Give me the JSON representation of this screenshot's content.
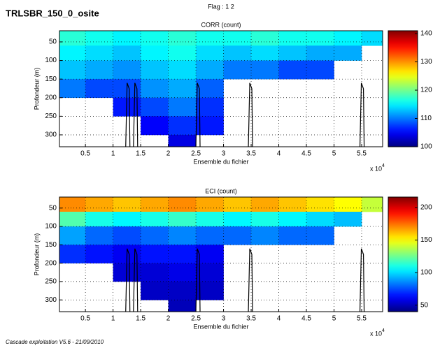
{
  "header": {
    "title": "TRLSBR_150_0_osite",
    "subtitle": "Flag : 1 2"
  },
  "footer": "Cascade exploitation V5.6 - 21/09/2010",
  "chart_data": [
    {
      "type": "heatmap",
      "title": "CORR (count)",
      "xlabel": "Ensemble du fichier",
      "ylabel": "Profondeur (m)",
      "xscale_label": "x 10",
      "xscale_exponent": "4",
      "x": [
        0.03,
        0.5,
        1,
        1.5,
        2,
        2.5,
        3,
        3.5,
        4,
        4.5,
        5,
        5.5,
        5.88
      ],
      "y": [
        20,
        60,
        100,
        150,
        200,
        250,
        300,
        332
      ],
      "values": [
        [
          117,
          116,
          115,
          116,
          117,
          116,
          116,
          117,
          116,
          116,
          115,
          114
        ],
        [
          115,
          114,
          113,
          115,
          116,
          114,
          113,
          114,
          113,
          112,
          112,
          null
        ],
        [
          113,
          112,
          111,
          113,
          114,
          112,
          110,
          110,
          108,
          108,
          null,
          null
        ],
        [
          110,
          108,
          108,
          111,
          112,
          109,
          null,
          null,
          null,
          null,
          null,
          null
        ],
        [
          null,
          null,
          106,
          108,
          110,
          107,
          null,
          null,
          null,
          null,
          null,
          null
        ],
        [
          null,
          null,
          null,
          105,
          107,
          106,
          null,
          null,
          null,
          null,
          null,
          null
        ],
        [
          null,
          null,
          null,
          null,
          104,
          null,
          null,
          null,
          null,
          null,
          null,
          null
        ]
      ],
      "xlim": [
        0.03,
        5.88
      ],
      "ylim": [
        20,
        332
      ],
      "y_reversed": true,
      "xticks": [
        0.5,
        1,
        1.5,
        2,
        2.5,
        3,
        3.5,
        4,
        4.5,
        5,
        5.5
      ],
      "yticks": [
        50,
        100,
        150,
        200,
        250,
        300
      ],
      "clim": [
        100,
        141
      ],
      "cticks": [
        100,
        110,
        120,
        130,
        140
      ],
      "colormap": "jet",
      "grid": true
    },
    {
      "type": "heatmap",
      "title": "ECI (count)",
      "xlabel": "Ensemble du fichier",
      "ylabel": "Profondeur (m)",
      "xscale_label": "x 10",
      "xscale_exponent": "4",
      "x": [
        0.03,
        0.5,
        1,
        1.5,
        2,
        2.5,
        3,
        3.5,
        4,
        4.5,
        5,
        5.5,
        5.88
      ],
      "y": [
        20,
        60,
        100,
        150,
        200,
        250,
        300,
        332
      ],
      "values": [
        [
          170,
          165,
          160,
          165,
          170,
          165,
          160,
          165,
          160,
          155,
          150,
          140
        ],
        [
          120,
          110,
          105,
          110,
          115,
          110,
          105,
          110,
          105,
          100,
          95,
          null
        ],
        [
          90,
          80,
          75,
          80,
          85,
          80,
          80,
          85,
          80,
          80,
          null,
          null
        ],
        [
          70,
          65,
          60,
          65,
          65,
          60,
          null,
          null,
          null,
          null,
          null,
          null
        ],
        [
          null,
          null,
          55,
          55,
          58,
          55,
          null,
          null,
          null,
          null,
          null,
          null
        ],
        [
          null,
          null,
          null,
          52,
          52,
          52,
          null,
          null,
          null,
          null,
          null,
          null
        ],
        [
          null,
          null,
          null,
          null,
          50,
          null,
          null,
          null,
          null,
          null,
          null,
          null
        ]
      ],
      "xlim": [
        0.03,
        5.88
      ],
      "ylim": [
        20,
        332
      ],
      "y_reversed": true,
      "xticks": [
        0.5,
        1,
        1.5,
        2,
        2.5,
        3,
        3.5,
        4,
        4.5,
        5,
        5.5
      ],
      "yticks": [
        50,
        100,
        150,
        200,
        250,
        300
      ],
      "clim": [
        40,
        216
      ],
      "cticks": [
        50,
        100,
        150,
        200
      ],
      "colormap": "jet",
      "grid": true
    }
  ]
}
